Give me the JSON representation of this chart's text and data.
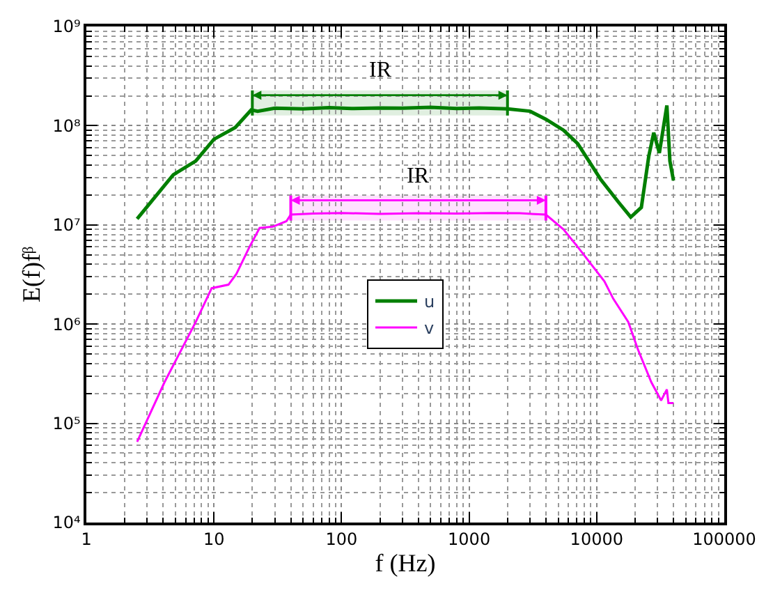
{
  "chart_data": {
    "type": "line",
    "xlabel": "f (Hz)",
    "ylabel": "E(f)fᵝ",
    "log": "xy",
    "xlim": [
      1,
      100000
    ],
    "xticks": [
      1,
      10,
      100,
      1000,
      10000,
      100000
    ],
    "ylim": [
      10000,
      1000000000
    ],
    "yticks": [
      {
        "value": 10000,
        "label": "10⁴"
      },
      {
        "value": 100000,
        "label": "10⁵"
      },
      {
        "value": 1000000,
        "label": "10⁶"
      },
      {
        "value": 10000000,
        "label": "10⁷"
      },
      {
        "value": 100000000,
        "label": "10⁸"
      },
      {
        "value": 1000000000,
        "label": "10⁹"
      }
    ],
    "grid": true,
    "legend": "center",
    "marker": "none",
    "line_style": "solid",
    "series": [
      {
        "name": "u",
        "color": "#007f00",
        "x": [
          2.5,
          4.8,
          7.2,
          10,
          14.7,
          19.6,
          22,
          30,
          50,
          80,
          120,
          200,
          300,
          500,
          800,
          1200,
          2000,
          3000,
          4000,
          5500,
          7100,
          10700,
          14800,
          18500,
          22400,
          25600,
          28000,
          31000,
          35500,
          37500,
          40000
        ],
        "values": [
          11500000,
          32000000,
          44000000,
          73000000,
          96000000,
          144000000,
          140000000,
          150000000,
          148000000,
          152000000,
          149000000,
          151000000,
          150000000,
          153000000,
          149000000,
          151000000,
          148000000,
          140000000,
          116000000,
          90000000,
          66000000,
          29000000,
          17000000,
          12000000,
          15000000,
          49000000,
          85000000,
          53000000,
          160000000,
          44000000,
          28000000
        ]
      },
      {
        "name": "v",
        "color": "#ff00ff",
        "x": [
          2.5,
          4.1,
          7.2,
          9.6,
          13,
          15,
          19,
          22.8,
          29,
          37,
          40,
          60,
          100,
          200,
          400,
          800,
          1500,
          2500,
          4000,
          5500,
          7100,
          11500,
          13500,
          17700,
          21000,
          26800,
          32000,
          35500,
          36500,
          40000
        ],
        "values": [
          65000,
          260000,
          1050000,
          2300000,
          2500000,
          3200000,
          6000000,
          9300000,
          9600000,
          10900000,
          12700000,
          13000000,
          13200000,
          12900000,
          13100000,
          13000000,
          13200000,
          13100000,
          12700000,
          9000000,
          6000000,
          2700000,
          1800000,
          1050000,
          560000,
          260000,
          170000,
          220000,
          160000,
          160000
        ]
      }
    ],
    "bands": [
      {
        "axis": "x",
        "from": 20,
        "to": 2000,
        "label": "IR",
        "color": "#007f00"
      },
      {
        "axis": "x",
        "from": 40,
        "to": 4000,
        "label": "IR",
        "color": "#ff00ff"
      }
    ]
  }
}
